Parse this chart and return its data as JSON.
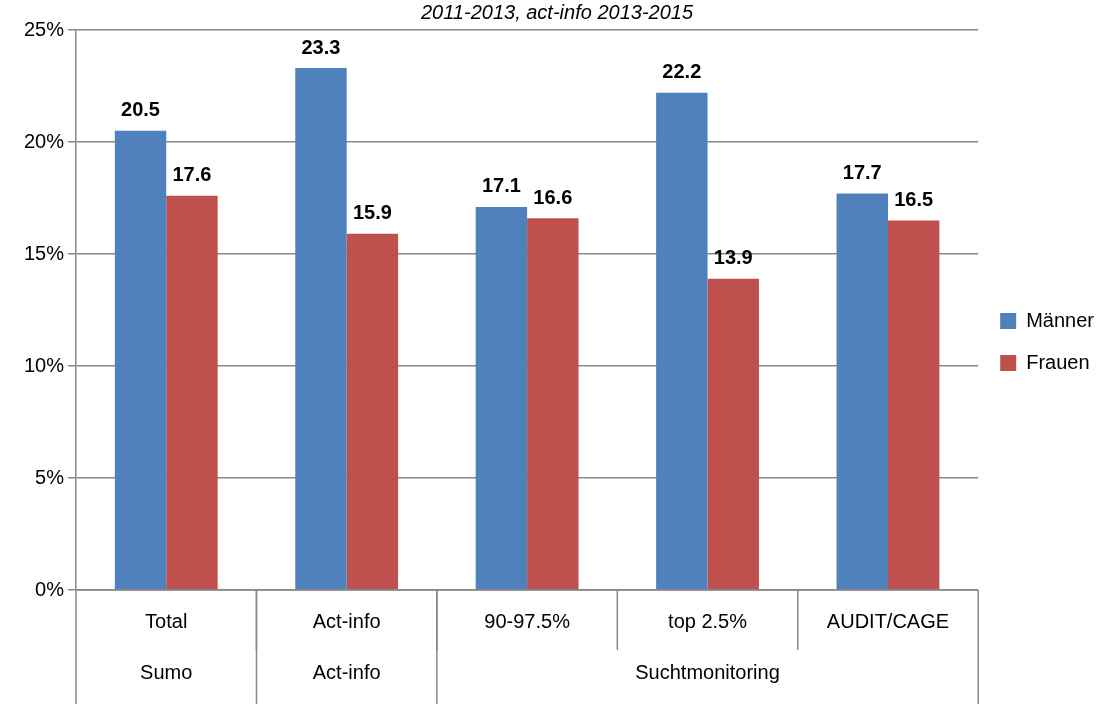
{
  "chart_data": {
    "type": "bar",
    "subtitle": "2011-2013, act-info 2013-2015",
    "categories": [
      "Total",
      "Act-info",
      "90-97.5%",
      "top 2.5%",
      "AUDIT/CAGE"
    ],
    "series": [
      {
        "name": "Männer",
        "color": "#4f81bd",
        "values": [
          20.5,
          23.3,
          17.1,
          22.2,
          17.7
        ]
      },
      {
        "name": "Frauen",
        "color": "#c0504d",
        "values": [
          17.6,
          15.9,
          16.6,
          13.9,
          16.5
        ]
      }
    ],
    "ylim": [
      0,
      25
    ],
    "yticks": [
      {
        "value": 0,
        "label": "0%"
      },
      {
        "value": 5,
        "label": "5%"
      },
      {
        "value": 10,
        "label": "10%"
      },
      {
        "value": 15,
        "label": "15%"
      },
      {
        "value": 20,
        "label": "20%"
      },
      {
        "value": 25,
        "label": "25%"
      }
    ],
    "annotations": [
      "Sumo",
      "Act-info",
      "Suchtmonitoring"
    ],
    "data_labels": true,
    "grid": "y",
    "legend": "right"
  }
}
